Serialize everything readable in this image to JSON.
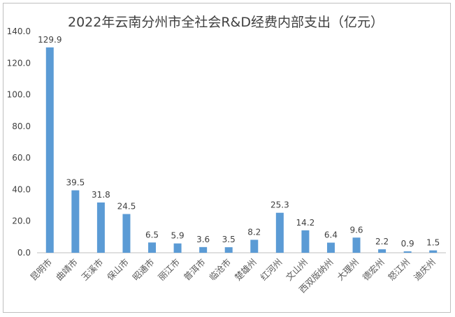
{
  "chart_data": {
    "type": "bar",
    "title": "2022年云南分州市全社会R&D经费内部支出（亿元）",
    "xlabel": "",
    "ylabel": "",
    "ylim": [
      0,
      140
    ],
    "yticks": [
      "0.0",
      "20.0",
      "40.0",
      "60.0",
      "80.0",
      "100.0",
      "120.0",
      "140.0"
    ],
    "grid": false,
    "legend": "none",
    "bar_color": "#5b9bd5",
    "categories": [
      "昆明市",
      "曲靖市",
      "玉溪市",
      "保山市",
      "昭通市",
      "丽江市",
      "普洱市",
      "临沧市",
      "楚雄州",
      "红河州",
      "文山州",
      "西双版纳州",
      "大理州",
      "德宏州",
      "怒江州",
      "迪庆州"
    ],
    "values": [
      129.9,
      39.5,
      31.8,
      24.5,
      6.5,
      5.9,
      3.6,
      3.5,
      8.2,
      25.3,
      14.2,
      6.4,
      9.6,
      2.2,
      0.9,
      1.5
    ],
    "value_labels": [
      "129.9",
      "39.5",
      "31.8",
      "24.5",
      "6.5",
      "5.9",
      "3.6",
      "3.5",
      "8.2",
      "25.3",
      "14.2",
      "6.4",
      "9.6",
      "2.2",
      "0.9",
      "1.5"
    ]
  }
}
